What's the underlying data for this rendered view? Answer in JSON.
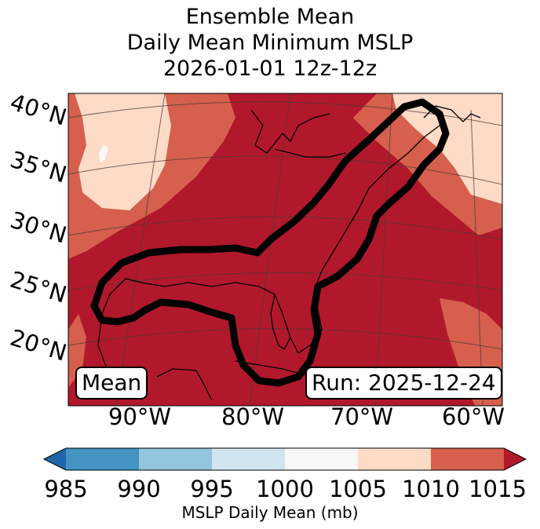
{
  "title": {
    "line1": "Ensemble Mean",
    "line2": "Daily Mean Minimum MSLP",
    "line3": "2026-01-01 12z-12z"
  },
  "map": {
    "lat_labels": [
      "40°N",
      "35°N",
      "30°N",
      "25°N",
      "20°N"
    ],
    "lon_labels": [
      "90°W",
      "80°W",
      "70°W",
      "60°W"
    ],
    "left_box": "Mean",
    "right_box": "Run: 2025-12-24",
    "fill_colors": {
      "c1000_1005": "#f7f7f7",
      "c1005_1010": "#fddbc7",
      "c1010_1015": "#d6604d",
      "c1015_plus": "#b2182b"
    },
    "contour_color": "#000000"
  },
  "colorbar": {
    "label": "MSLP Daily Mean (mb)",
    "ticks": [
      "985",
      "990",
      "995",
      "1000",
      "1005",
      "1010",
      "1015"
    ],
    "colors": [
      "#2166ac",
      "#4393c3",
      "#92c5de",
      "#d1e5f0",
      "#f7f7f7",
      "#fddbc7",
      "#d6604d",
      "#b2182b"
    ]
  }
}
